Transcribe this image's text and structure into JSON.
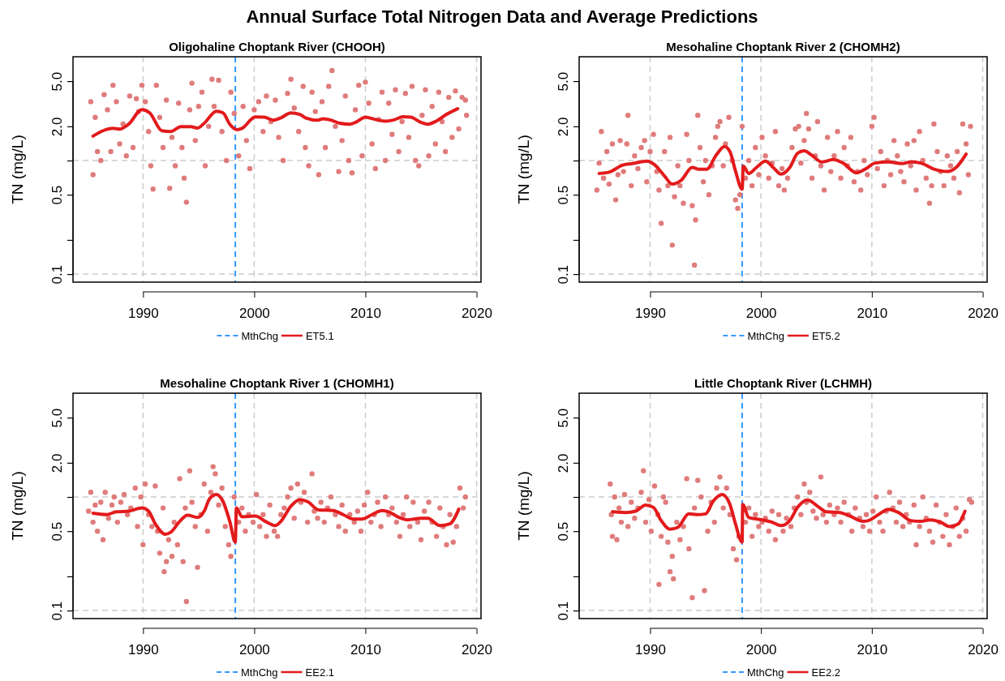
{
  "chart_data": [
    {
      "type": "scatter",
      "title": "Oligohaline Choptank River (CHOOH)",
      "ylabel": "TN (mg/L)",
      "annotations": [
        "Annual Surface Total Nitrogen Data and Average Predictions"
      ],
      "log": true,
      "legend": "bottom",
      "xlim": [
        1983.7,
        2020.4
      ],
      "ylim": [
        0.085,
        8.2
      ],
      "xticks": [
        1990,
        2000,
        2010,
        2020
      ],
      "yticks": [
        {
          "value": 0.1,
          "label": "0.1"
        },
        {
          "value": 0.2,
          "label": null
        },
        {
          "value": 0.5,
          "label": "0.5"
        },
        {
          "value": 1,
          "label": null
        },
        {
          "value": 2,
          "label": "2.0"
        },
        {
          "value": 5,
          "label": "5.0"
        }
      ],
      "ref_lines": [
        {
          "axis": "y",
          "value": 0.1,
          "color": "#cccccc",
          "line_style": "dashed"
        },
        {
          "axis": "y",
          "value": 1,
          "color": "#cccccc",
          "line_style": "dashed"
        },
        {
          "axis": "x",
          "value": 1990,
          "color": "#cccccc",
          "line_style": "dashed"
        },
        {
          "axis": "x",
          "value": 2000,
          "color": "#cccccc",
          "line_style": "dashed"
        },
        {
          "axis": "x",
          "value": 2010,
          "color": "#cccccc",
          "line_style": "dashed"
        },
        {
          "axis": "x",
          "value": 2020,
          "color": "#cccccc",
          "line_style": "dashed"
        },
        {
          "axis": "x",
          "value": 1998.3,
          "label": "MthChg",
          "color": "#3399ff",
          "line_style": "dashed"
        }
      ],
      "series": [
        {
          "marker": "circle",
          "color": "#e07b7b",
          "x": [
            1985.3,
            1985.5,
            1985.7,
            1985.9,
            1986.2,
            1986.5,
            1986.8,
            1987.1,
            1987.3,
            1987.6,
            1987.9,
            1988.2,
            1988.5,
            1988.8,
            1989.1,
            1989.4,
            1989.6,
            1989.9,
            1990.2,
            1990.5,
            1990.7,
            1990.9,
            1991.2,
            1991.5,
            1991.8,
            1992.1,
            1992.4,
            1992.6,
            1992.9,
            1993.2,
            1993.5,
            1993.7,
            1993.9,
            1994.2,
            1994.4,
            1994.7,
            1995.0,
            1995.3,
            1995.6,
            1995.9,
            1996.2,
            1996.4,
            1996.8,
            1997.1,
            1997.5,
            1997.9,
            1998.2,
            1998.6,
            1999.0,
            1999.3,
            1999.6,
            2000.0,
            2000.4,
            2000.8,
            2001.1,
            2001.5,
            2001.9,
            2002.2,
            2002.6,
            2003.0,
            2003.3,
            2003.6,
            2004.0,
            2004.4,
            2004.6,
            2004.9,
            2005.2,
            2005.5,
            2005.8,
            2006.1,
            2006.4,
            2006.7,
            2007.0,
            2007.3,
            2007.6,
            2007.9,
            2008.2,
            2008.5,
            2008.8,
            2009.1,
            2009.4,
            2009.7,
            2010.0,
            2010.3,
            2010.6,
            2010.9,
            2011.2,
            2011.5,
            2011.8,
            2012.1,
            2012.4,
            2012.7,
            2013.0,
            2013.3,
            2013.6,
            2013.9,
            2014.2,
            2014.5,
            2014.8,
            2015.1,
            2015.4,
            2015.7,
            2016.0,
            2016.3,
            2016.6,
            2016.9,
            2017.2,
            2017.5,
            2017.8,
            2018.1,
            2018.4,
            2018.7,
            2019.0,
            2019.1
          ],
          "values": [
            3.3,
            0.75,
            2.4,
            1.2,
            1.0,
            3.8,
            2.8,
            1.2,
            4.6,
            3.3,
            1.4,
            2.1,
            1.1,
            3.7,
            1.3,
            3.5,
            2.7,
            4.6,
            3.3,
            1.8,
            0.9,
            0.56,
            4.6,
            2.4,
            1.3,
            3.4,
            0.57,
            1.6,
            0.9,
            3.2,
            1.3,
            0.7,
            0.43,
            2.8,
            4.8,
            1.5,
            3.0,
            4.0,
            0.9,
            2.0,
            5.2,
            3.0,
            5.1,
            1.8,
            1.0,
            4.0,
            2.6,
            1.1,
            3.0,
            1.5,
            0.85,
            2.8,
            3.3,
            1.8,
            3.7,
            2.2,
            3.4,
            1.6,
            1.0,
            3.9,
            5.2,
            2.9,
            1.8,
            4.5,
            1.3,
            0.9,
            4.0,
            2.7,
            0.75,
            3.3,
            1.3,
            4.5,
            6.2,
            2.0,
            0.8,
            1.5,
            3.7,
            1.0,
            0.78,
            2.8,
            4.6,
            1.1,
            4.9,
            3.2,
            1.4,
            0.85,
            2.3,
            4.0,
            1.0,
            3.2,
            1.7,
            4.2,
            1.2,
            2.2,
            3.9,
            1.6,
            4.5,
            1.0,
            0.9,
            2.5,
            4.2,
            1.1,
            3.0,
            1.4,
            4.0,
            2.2,
            1.2,
            3.6,
            1.6,
            4.1,
            1.9,
            3.6,
            3.4,
            2.5
          ]
        },
        {
          "type": "line",
          "name": "ET5.1",
          "color": "#e31a1c",
          "x": [
            1985.5,
            1986.4,
            1987.3,
            1987.9,
            1988.7,
            1989.9,
            1990.6,
            1991.7,
            1992.5,
            1993.4,
            1994.3,
            1994.9,
            1995.5,
            1996.6,
            1997.2,
            1997.8,
            1998.5,
            1998.9,
            2000.1,
            2000.9,
            2001.7,
            2002.4,
            2003.3,
            2004.1,
            2004.6,
            2005.7,
            2006.2,
            2006.9,
            2007.7,
            2008.6,
            2009.2,
            2010.0,
            2010.9,
            2011.8,
            2012.5,
            2013.4,
            2014.1,
            2014.9,
            2015.6,
            2016.4,
            2017.3,
            2018.3
          ],
          "values": [
            1.64,
            1.83,
            1.92,
            1.89,
            2.09,
            2.81,
            2.63,
            1.83,
            1.8,
            1.99,
            1.99,
            1.93,
            2.13,
            2.72,
            2.63,
            2.09,
            1.87,
            1.92,
            2.42,
            2.41,
            2.27,
            2.38,
            2.63,
            2.55,
            2.38,
            2.27,
            2.33,
            2.27,
            2.13,
            2.09,
            2.19,
            2.41,
            2.3,
            2.22,
            2.27,
            2.43,
            2.41,
            2.19,
            2.09,
            2.23,
            2.55,
            2.86
          ]
        }
      ]
    },
    {
      "type": "scatter",
      "title": "Mesohaline Choptank River 2 (CHOMH2)",
      "ylabel": "TN (mg/L)",
      "log": true,
      "legend": "bottom",
      "xlim": [
        1983.6,
        2020.4
      ],
      "ylim": [
        0.085,
        8.2
      ],
      "xticks": [
        1990,
        2000,
        2010,
        2020
      ],
      "yticks": [
        {
          "value": 0.1,
          "label": "0.1"
        },
        {
          "value": 0.2,
          "label": null
        },
        {
          "value": 0.5,
          "label": "0.5"
        },
        {
          "value": 1,
          "label": null
        },
        {
          "value": 2,
          "label": "2.0"
        },
        {
          "value": 5,
          "label": "5.0"
        }
      ],
      "ref_lines": [
        {
          "axis": "y",
          "value": 0.1,
          "color": "#cccccc",
          "line_style": "dashed"
        },
        {
          "axis": "y",
          "value": 1,
          "color": "#cccccc",
          "line_style": "dashed"
        },
        {
          "axis": "x",
          "value": 1990,
          "color": "#cccccc",
          "line_style": "dashed"
        },
        {
          "axis": "x",
          "value": 2000,
          "color": "#cccccc",
          "line_style": "dashed"
        },
        {
          "axis": "x",
          "value": 2010,
          "color": "#cccccc",
          "line_style": "dashed"
        },
        {
          "axis": "x",
          "value": 2020,
          "color": "#cccccc",
          "line_style": "dashed"
        },
        {
          "axis": "x",
          "value": 1998.3,
          "label": "MthChg",
          "color": "#3399ff",
          "line_style": "dashed"
        }
      ],
      "series": [
        {
          "marker": "circle",
          "color": "#e07b7b",
          "x": [
            1985.2,
            1985.4,
            1985.6,
            1985.8,
            1986.1,
            1986.3,
            1986.6,
            1986.9,
            1987.1,
            1987.3,
            1987.6,
            1987.9,
            1988.0,
            1988.3,
            1988.6,
            1988.9,
            1989.2,
            1989.5,
            1989.7,
            1990.0,
            1990.3,
            1990.6,
            1990.8,
            1991.0,
            1991.3,
            1991.6,
            1991.8,
            1992.0,
            1992.2,
            1992.5,
            1992.7,
            1993.0,
            1993.3,
            1993.5,
            1993.8,
            1994.0,
            1994.1,
            1994.3,
            1994.5,
            1994.8,
            1995.0,
            1995.3,
            1995.6,
            1995.9,
            1996.1,
            1996.3,
            1996.6,
            1996.8,
            1997.1,
            1997.4,
            1997.7,
            1997.9,
            1998.1,
            1998.3,
            1998.6,
            1998.9,
            1999.2,
            1999.5,
            1999.8,
            2000.1,
            2000.4,
            2000.7,
            2001.0,
            2001.3,
            2001.6,
            2001.9,
            2002.1,
            2002.4,
            2002.8,
            2003.1,
            2003.4,
            2003.6,
            2003.9,
            2004.1,
            2004.3,
            2004.6,
            2004.9,
            2005.1,
            2005.4,
            2005.7,
            2006.0,
            2006.3,
            2006.6,
            2006.9,
            2007.2,
            2007.5,
            2007.8,
            2008.1,
            2008.4,
            2008.7,
            2009.0,
            2009.3,
            2009.6,
            2010.0,
            2010.2,
            2010.5,
            2010.8,
            2011.1,
            2011.4,
            2011.7,
            2012.0,
            2012.3,
            2012.6,
            2012.9,
            2013.2,
            2013.5,
            2013.8,
            2014.0,
            2014.3,
            2014.6,
            2014.9,
            2015.2,
            2015.4,
            2015.6,
            2015.9,
            2016.2,
            2016.5,
            2016.8,
            2017.1,
            2017.4,
            2017.7,
            2017.9,
            2018.2,
            2018.5,
            2018.7,
            2018.9
          ],
          "values": [
            0.55,
            0.95,
            1.8,
            0.7,
            1.2,
            0.62,
            1.4,
            0.45,
            0.75,
            1.5,
            0.8,
            1.4,
            2.5,
            0.6,
            1.1,
            0.85,
            1.3,
            1.5,
            0.65,
            1.2,
            1.7,
            0.8,
            0.55,
            0.28,
            1.2,
            0.6,
            1.6,
            0.18,
            0.48,
            0.9,
            0.6,
            0.42,
            1.7,
            1.0,
            0.4,
            0.12,
            0.3,
            2.5,
            1.3,
            0.65,
            1.0,
            0.5,
            0.9,
            1.6,
            2.0,
            2.2,
            0.9,
            1.4,
            2.4,
            1.0,
            0.45,
            0.38,
            0.5,
            2.0,
            0.7,
            1.0,
            0.6,
            1.3,
            0.75,
            1.6,
            1.1,
            0.7,
            0.95,
            1.8,
            0.6,
            0.85,
            0.55,
            0.7,
            1.3,
            1.9,
            2.0,
            0.95,
            1.5,
            2.6,
            1.9,
            0.7,
            1.1,
            2.2,
            0.9,
            0.55,
            1.6,
            0.8,
            1.1,
            1.8,
            0.7,
            1.3,
            0.9,
            1.6,
            0.65,
            0.8,
            0.55,
            1.0,
            0.75,
            2.0,
            2.4,
            0.85,
            1.2,
            0.6,
            1.0,
            0.75,
            1.5,
            1.1,
            0.8,
            0.65,
            1.4,
            0.9,
            1.5,
            0.55,
            1.8,
            1.0,
            0.7,
            0.42,
            0.6,
            2.1,
            1.2,
            0.8,
            0.6,
            1.1,
            0.9,
            0.7,
            1.2,
            0.52,
            2.1,
            1.4,
            0.75,
            2.0
          ]
        },
        {
          "type": "line",
          "name": "ET5.2",
          "color": "#e31a1c",
          "x": [
            1985.4,
            1986.3,
            1987.5,
            1988.4,
            1989.7,
            1990.4,
            1991.3,
            1992.0,
            1992.8,
            1993.8,
            1994.4,
            1995.1,
            1996.0,
            1996.7,
            1997.2,
            1997.7,
            1998.3,
            1998.4,
            1998.9,
            1999.6,
            2000.4,
            2001.1,
            2001.8,
            2002.6,
            2003.3,
            2003.9,
            2004.5,
            2005.5,
            2006.5,
            2007.4,
            2008.6,
            2009.4,
            2010.3,
            2011.5,
            2012.7,
            2013.5,
            2014.4,
            2015.6,
            2016.8,
            2017.6,
            2018.5
          ],
          "values": [
            0.77,
            0.79,
            0.91,
            0.94,
            0.99,
            0.92,
            0.73,
            0.62,
            0.67,
            0.87,
            0.84,
            0.84,
            1.13,
            1.33,
            1.2,
            0.81,
            0.56,
            0.89,
            0.77,
            0.87,
            0.99,
            0.87,
            0.76,
            0.87,
            1.16,
            1.22,
            1.13,
            0.97,
            1.02,
            0.95,
            0.78,
            0.84,
            0.95,
            0.97,
            0.94,
            0.97,
            0.95,
            0.84,
            0.8,
            0.87,
            1.14
          ]
        }
      ]
    },
    {
      "type": "scatter",
      "title": "Mesohaline Choptank River 1 (CHOMH1)",
      "ylabel": "TN (mg/L)",
      "log": true,
      "legend": "bottom",
      "xlim": [
        1983.7,
        2020.4
      ],
      "ylim": [
        0.085,
        8.2
      ],
      "xticks": [
        1990,
        2000,
        2010,
        2020
      ],
      "yticks": [
        {
          "value": 0.1,
          "label": "0.1"
        },
        {
          "value": 0.2,
          "label": null
        },
        {
          "value": 0.5,
          "label": "0.5"
        },
        {
          "value": 1,
          "label": null
        },
        {
          "value": 2,
          "label": "2.0"
        },
        {
          "value": 5,
          "label": "5.0"
        }
      ],
      "ref_lines": [
        {
          "axis": "y",
          "value": 0.1,
          "color": "#cccccc",
          "line_style": "dashed"
        },
        {
          "axis": "y",
          "value": 1,
          "color": "#cccccc",
          "line_style": "dashed"
        },
        {
          "axis": "x",
          "value": 1990,
          "color": "#cccccc",
          "line_style": "dashed"
        },
        {
          "axis": "x",
          "value": 2000,
          "color": "#cccccc",
          "line_style": "dashed"
        },
        {
          "axis": "x",
          "value": 2010,
          "color": "#cccccc",
          "line_style": "dashed"
        },
        {
          "axis": "x",
          "value": 2020,
          "color": "#cccccc",
          "line_style": "dashed"
        },
        {
          "axis": "x",
          "value": 1998.3,
          "label": "MthChg",
          "color": "#3399ff",
          "line_style": "dashed"
        }
      ],
      "series": [
        {
          "marker": "circle",
          "color": "#e07b7b",
          "x": [
            1985.1,
            1985.3,
            1985.5,
            1985.7,
            1985.9,
            1986.2,
            1986.4,
            1986.6,
            1986.9,
            1987.2,
            1987.4,
            1987.7,
            1988.0,
            1988.3,
            1988.6,
            1988.9,
            1989.3,
            1989.5,
            1989.8,
            1990.0,
            1990.2,
            1990.5,
            1990.8,
            1991.1,
            1991.3,
            1991.5,
            1991.8,
            1991.9,
            1992.1,
            1992.3,
            1992.6,
            1992.8,
            1993.1,
            1993.3,
            1993.6,
            1993.8,
            1993.9,
            1994.2,
            1994.4,
            1994.7,
            1994.9,
            1995.2,
            1995.5,
            1995.8,
            1996.1,
            1996.3,
            1996.5,
            1996.8,
            1997.1,
            1997.4,
            1997.7,
            1997.9,
            1998.2,
            1998.6,
            1998.9,
            1999.2,
            1999.5,
            1999.9,
            2000.2,
            2000.5,
            2000.8,
            2001.1,
            2001.4,
            2001.8,
            2002.1,
            2002.4,
            2002.7,
            2003.0,
            2003.3,
            2003.6,
            2003.9,
            2004.2,
            2004.5,
            2004.8,
            2005.2,
            2005.4,
            2005.7,
            2006.0,
            2006.3,
            2006.6,
            2006.9,
            2007.3,
            2007.6,
            2007.9,
            2008.2,
            2008.6,
            2009.0,
            2009.3,
            2009.6,
            2009.9,
            2010.2,
            2010.5,
            2010.8,
            2011.1,
            2011.4,
            2011.8,
            2012.1,
            2012.4,
            2012.8,
            2013.1,
            2013.4,
            2013.7,
            2014.0,
            2014.3,
            2014.7,
            2015.0,
            2015.3,
            2015.7,
            2016.0,
            2016.4,
            2016.7,
            2017.0,
            2017.3,
            2017.6,
            2017.9,
            2018.2,
            2018.5,
            2018.8,
            2019.0
          ],
          "values": [
            0.75,
            1.1,
            0.6,
            0.85,
            0.5,
            0.9,
            0.42,
            1.1,
            0.65,
            0.85,
            1.0,
            0.6,
            0.9,
            1.05,
            0.7,
            0.8,
            1.2,
            0.55,
            1.0,
            0.38,
            1.3,
            0.7,
            0.55,
            1.25,
            0.5,
            0.32,
            0.8,
            0.22,
            0.27,
            0.42,
            0.3,
            0.6,
            0.38,
            1.45,
            0.27,
            0.8,
            0.12,
            1.7,
            0.9,
            0.55,
            0.24,
            0.7,
            1.3,
            0.5,
            1.1,
            1.85,
            1.6,
            0.85,
            1.2,
            0.55,
            0.38,
            0.3,
            1.0,
            0.6,
            0.8,
            0.5,
            0.7,
            0.6,
            1.05,
            0.55,
            0.7,
            0.45,
            0.85,
            0.5,
            0.45,
            0.7,
            0.8,
            1.0,
            1.2,
            0.65,
            1.3,
            0.9,
            1.1,
            0.6,
            1.6,
            0.75,
            0.65,
            0.9,
            0.6,
            0.8,
            1.0,
            0.7,
            0.55,
            0.85,
            0.5,
            0.7,
            0.6,
            0.75,
            0.5,
            0.85,
            1.1,
            0.6,
            0.7,
            0.9,
            0.55,
            1.0,
            0.7,
            0.8,
            0.6,
            0.45,
            0.7,
            1.0,
            0.55,
            0.9,
            0.6,
            0.42,
            0.75,
            0.9,
            0.6,
            0.45,
            0.8,
            0.55,
            0.38,
            0.7,
            0.4,
            0.55,
            1.2,
            0.8,
            1.0
          ]
        },
        {
          "type": "line",
          "name": "EE2.1",
          "color": "#e31a1c",
          "x": [
            1985.5,
            1986.7,
            1987.6,
            1988.7,
            1989.9,
            1990.5,
            1991.1,
            1992.0,
            1992.5,
            1993.3,
            1994.0,
            1994.9,
            1995.5,
            1996.0,
            1996.6,
            1997.2,
            1997.8,
            1998.3,
            1998.4,
            1998.9,
            2000.1,
            2001.0,
            2001.9,
            2002.4,
            2003.3,
            2004.1,
            2004.8,
            2005.8,
            2007.1,
            2008.0,
            2008.9,
            2009.7,
            2010.6,
            2011.5,
            2012.1,
            2012.9,
            2013.8,
            2015.0,
            2015.6,
            2016.7,
            2017.6,
            2018.4
          ],
          "values": [
            0.72,
            0.7,
            0.74,
            0.75,
            0.8,
            0.75,
            0.58,
            0.47,
            0.49,
            0.61,
            0.69,
            0.66,
            0.75,
            0.97,
            1.05,
            0.91,
            0.61,
            0.4,
            0.8,
            0.67,
            0.68,
            0.61,
            0.56,
            0.61,
            0.83,
            0.95,
            0.91,
            0.77,
            0.76,
            0.7,
            0.64,
            0.64,
            0.7,
            0.76,
            0.74,
            0.67,
            0.63,
            0.65,
            0.65,
            0.56,
            0.58,
            0.78
          ]
        }
      ]
    },
    {
      "type": "scatter",
      "title": "Little Choptank River (LCHMH)",
      "ylabel": "TN (mg/L)",
      "log": true,
      "legend": "bottom",
      "xlim": [
        1983.6,
        2020.4
      ],
      "ylim": [
        0.085,
        8.2
      ],
      "xticks": [
        1990,
        2000,
        2010,
        2020
      ],
      "yticks": [
        {
          "value": 0.1,
          "label": "0.1"
        },
        {
          "value": 0.2,
          "label": null
        },
        {
          "value": 0.5,
          "label": "0.5"
        },
        {
          "value": 1,
          "label": null
        },
        {
          "value": 2,
          "label": "2.0"
        },
        {
          "value": 5,
          "label": "5.0"
        }
      ],
      "ref_lines": [
        {
          "axis": "y",
          "value": 0.1,
          "color": "#cccccc",
          "line_style": "dashed"
        },
        {
          "axis": "y",
          "value": 1,
          "color": "#cccccc",
          "line_style": "dashed"
        },
        {
          "axis": "x",
          "value": 1990,
          "color": "#cccccc",
          "line_style": "dashed"
        },
        {
          "axis": "x",
          "value": 2000,
          "color": "#cccccc",
          "line_style": "dashed"
        },
        {
          "axis": "x",
          "value": 2010,
          "color": "#cccccc",
          "line_style": "dashed"
        },
        {
          "axis": "x",
          "value": 2020,
          "color": "#cccccc",
          "line_style": "dashed"
        },
        {
          "axis": "x",
          "value": 1998.3,
          "label": "MthChg",
          "color": "#3399ff",
          "line_style": "dashed"
        }
      ],
      "series": [
        {
          "marker": "circle",
          "color": "#e07b7b",
          "x": [
            1986.4,
            1986.5,
            1986.6,
            1986.8,
            1987.0,
            1987.2,
            1987.4,
            1987.7,
            1988.0,
            1988.3,
            1988.6,
            1988.9,
            1989.2,
            1989.4,
            1989.6,
            1989.9,
            1990.1,
            1990.4,
            1990.7,
            1990.8,
            1991.0,
            1991.2,
            1991.4,
            1991.6,
            1991.8,
            1992.0,
            1992.1,
            1992.4,
            1992.7,
            1993.0,
            1993.3,
            1993.5,
            1993.8,
            1994.0,
            1994.3,
            1994.6,
            1994.9,
            1995.2,
            1995.5,
            1995.8,
            1996.0,
            1996.3,
            1996.6,
            1996.9,
            1997.2,
            1997.5,
            1997.8,
            1998.0,
            1998.6,
            1998.9,
            1999.2,
            1999.5,
            1999.8,
            2000.1,
            2000.4,
            2000.7,
            2001.0,
            2001.3,
            2001.6,
            2002.0,
            2002.3,
            2002.7,
            2003.0,
            2003.3,
            2003.6,
            2003.9,
            2004.1,
            2004.4,
            2004.7,
            2005.0,
            2005.4,
            2005.6,
            2005.9,
            2006.2,
            2006.6,
            2006.9,
            2007.2,
            2007.5,
            2007.9,
            2008.2,
            2008.5,
            2008.9,
            2009.2,
            2009.5,
            2009.8,
            2010.1,
            2010.4,
            2010.7,
            2011.0,
            2011.3,
            2011.6,
            2011.9,
            2012.2,
            2012.5,
            2012.8,
            2013.1,
            2013.4,
            2013.8,
            2014.0,
            2014.3,
            2014.6,
            2014.9,
            2015.2,
            2015.5,
            2015.8,
            2016.1,
            2016.4,
            2016.7,
            2017.0,
            2017.3,
            2017.6,
            2017.9,
            2018.2,
            2018.5,
            2018.8,
            2019.0
          ],
          "values": [
            1.3,
            0.7,
            0.45,
            1.0,
            0.42,
            0.8,
            0.6,
            1.05,
            0.55,
            0.9,
            0.65,
            0.8,
            1.1,
            1.7,
            0.6,
            0.95,
            0.5,
            1.25,
            0.7,
            0.17,
            0.45,
            1.0,
            0.9,
            0.4,
            0.22,
            0.3,
            0.19,
            0.6,
            0.42,
            0.55,
            1.45,
            0.35,
            0.13,
            0.8,
            1.4,
            1.0,
            0.15,
            0.5,
            0.9,
            0.6,
            1.2,
            1.5,
            0.8,
            1.2,
            0.7,
            0.35,
            0.28,
            0.45,
            0.6,
            0.8,
            0.45,
            0.7,
            0.55,
            0.6,
            0.65,
            0.5,
            0.75,
            0.42,
            0.7,
            0.5,
            0.65,
            0.55,
            0.8,
            1.0,
            0.7,
            1.3,
            0.9,
            1.1,
            0.75,
            0.65,
            1.5,
            0.7,
            0.6,
            0.85,
            0.7,
            0.8,
            0.6,
            0.9,
            0.7,
            0.5,
            0.8,
            0.65,
            0.55,
            0.7,
            0.5,
            0.75,
            1.0,
            0.6,
            0.5,
            0.75,
            1.1,
            0.8,
            0.6,
            0.9,
            0.55,
            0.7,
            0.6,
            0.85,
            0.38,
            0.55,
            1.0,
            0.65,
            0.5,
            0.4,
            0.85,
            0.6,
            0.45,
            0.7,
            0.38,
            0.55,
            0.8,
            0.45,
            0.65,
            0.5,
            0.95,
            0.9
          ]
        },
        {
          "type": "line",
          "name": "EE2.2",
          "color": "#e31a1c",
          "x": [
            1986.6,
            1987.8,
            1988.7,
            1989.6,
            1990.3,
            1991.0,
            1991.8,
            1992.5,
            1993.5,
            1994.2,
            1995.0,
            1995.7,
            1996.5,
            1997.2,
            1997.7,
            1998.3,
            1998.35,
            1998.9,
            2000.1,
            2001.0,
            2001.8,
            2002.6,
            2003.3,
            2004.2,
            2005.1,
            2005.9,
            2007.1,
            2008.0,
            2009.2,
            2009.7,
            2010.6,
            2011.5,
            2012.4,
            2013.5,
            2014.4,
            2015.3,
            2016.2,
            2017.0,
            2017.8,
            2018.4
          ],
          "values": [
            0.74,
            0.73,
            0.75,
            0.85,
            0.81,
            0.62,
            0.52,
            0.54,
            0.71,
            0.7,
            0.71,
            0.92,
            1.05,
            0.86,
            0.58,
            0.4,
            0.86,
            0.66,
            0.63,
            0.6,
            0.56,
            0.62,
            0.81,
            0.94,
            0.83,
            0.74,
            0.73,
            0.68,
            0.61,
            0.62,
            0.7,
            0.78,
            0.73,
            0.62,
            0.61,
            0.63,
            0.6,
            0.55,
            0.58,
            0.75
          ]
        }
      ]
    }
  ]
}
